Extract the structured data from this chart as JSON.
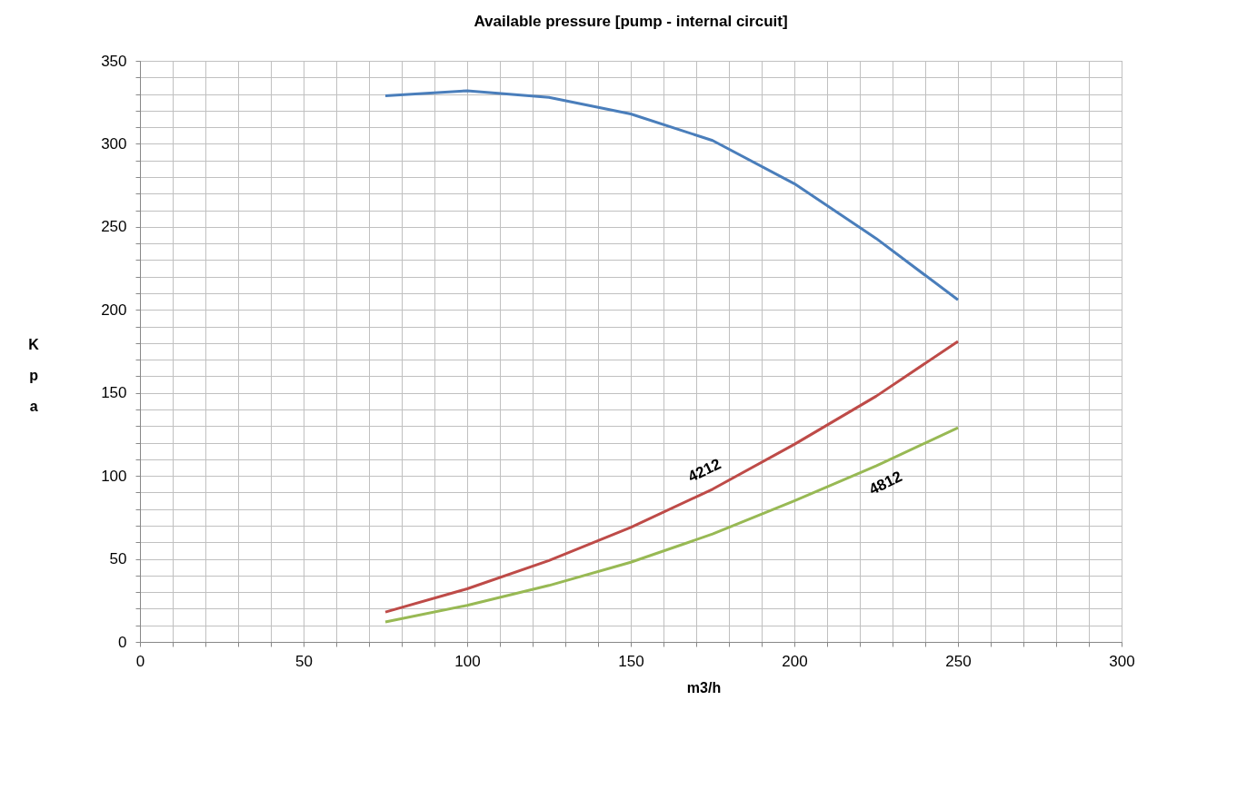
{
  "chart_data": {
    "type": "line",
    "title": "Available pressure  [pump -  internal circuit]",
    "xlabel": "m3/h",
    "ylabel": "Kpa",
    "x": [
      75,
      100,
      125,
      150,
      175,
      200,
      225,
      250
    ],
    "series": [
      {
        "color": "#4a7ebb",
        "values": [
          329,
          332,
          328,
          318,
          302,
          276,
          243,
          206
        ]
      },
      {
        "name": "4212",
        "color": "#be4b48",
        "values": [
          18,
          32,
          49,
          69,
          92,
          119,
          148,
          181
        ]
      },
      {
        "name": "4812",
        "color": "#98b954",
        "values": [
          12,
          22,
          34,
          48,
          65,
          85,
          106,
          129
        ]
      }
    ],
    "xlim": [
      0,
      300
    ],
    "xticks": [
      0,
      {
        "value": 10,
        "label": null
      },
      {
        "value": 20,
        "label": null
      },
      {
        "value": 30,
        "label": null
      },
      {
        "value": 40,
        "label": null
      },
      50,
      {
        "value": 60,
        "label": null
      },
      {
        "value": 70,
        "label": null
      },
      {
        "value": 80,
        "label": null
      },
      {
        "value": 90,
        "label": null
      },
      100,
      {
        "value": 110,
        "label": null
      },
      {
        "value": 120,
        "label": null
      },
      {
        "value": 130,
        "label": null
      },
      {
        "value": 140,
        "label": null
      },
      150,
      {
        "value": 160,
        "label": null
      },
      {
        "value": 170,
        "label": null
      },
      {
        "value": 180,
        "label": null
      },
      {
        "value": 190,
        "label": null
      },
      200,
      {
        "value": 210,
        "label": null
      },
      {
        "value": 220,
        "label": null
      },
      {
        "value": 230,
        "label": null
      },
      {
        "value": 240,
        "label": null
      },
      250,
      {
        "value": 260,
        "label": null
      },
      {
        "value": 270,
        "label": null
      },
      {
        "value": 280,
        "label": null
      },
      {
        "value": 290,
        "label": null
      },
      300
    ],
    "ylim": [
      0,
      350
    ],
    "yticks": [
      0,
      {
        "value": 10,
        "label": null
      },
      {
        "value": 20,
        "label": null
      },
      {
        "value": 30,
        "label": null
      },
      {
        "value": 40,
        "label": null
      },
      50,
      {
        "value": 60,
        "label": null
      },
      {
        "value": 70,
        "label": null
      },
      {
        "value": 80,
        "label": null
      },
      {
        "value": 90,
        "label": null
      },
      100,
      {
        "value": 110,
        "label": null
      },
      {
        "value": 120,
        "label": null
      },
      {
        "value": 130,
        "label": null
      },
      {
        "value": 140,
        "label": null
      },
      150,
      {
        "value": 160,
        "label": null
      },
      {
        "value": 170,
        "label": null
      },
      {
        "value": 180,
        "label": null
      },
      {
        "value": 190,
        "label": null
      },
      200,
      {
        "value": 210,
        "label": null
      },
      {
        "value": 220,
        "label": null
      },
      {
        "value": 230,
        "label": null
      },
      {
        "value": 240,
        "label": null
      },
      250,
      {
        "value": 260,
        "label": null
      },
      {
        "value": 270,
        "label": null
      },
      {
        "value": 280,
        "label": null
      },
      {
        "value": 290,
        "label": null
      },
      300,
      {
        "value": 310,
        "label": null
      },
      {
        "value": 320,
        "label": null
      },
      {
        "value": 330,
        "label": null
      },
      {
        "value": 340,
        "label": null
      },
      350
    ],
    "grid": true,
    "legend": false,
    "marker": "none",
    "line_style": "solid"
  }
}
